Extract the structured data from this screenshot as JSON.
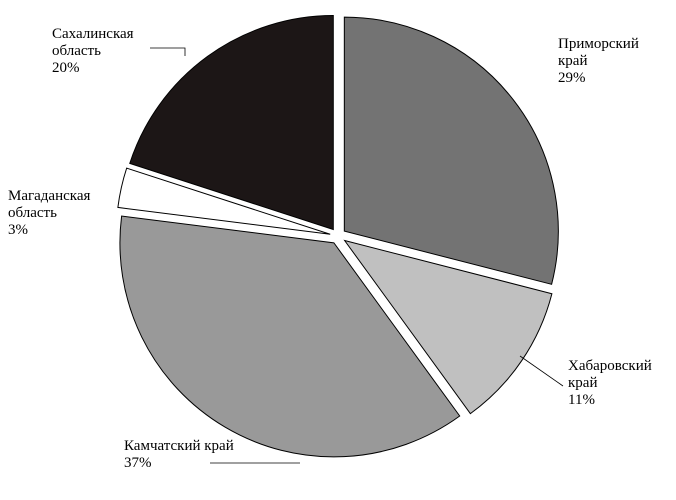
{
  "chart_data": {
    "type": "pie",
    "categories": [
      "Приморский край",
      "Хабаровский край",
      "Камчатский край",
      "Магаданская область",
      "Сахалинская область"
    ],
    "values": [
      29,
      11,
      37,
      3,
      20
    ],
    "value_labels": [
      "29%",
      "11%",
      "37%",
      "3%",
      "20%"
    ],
    "colors": [
      "#737373",
      "#c0c0c0",
      "#999999",
      "#ffffff",
      "#1c1616"
    ]
  }
}
